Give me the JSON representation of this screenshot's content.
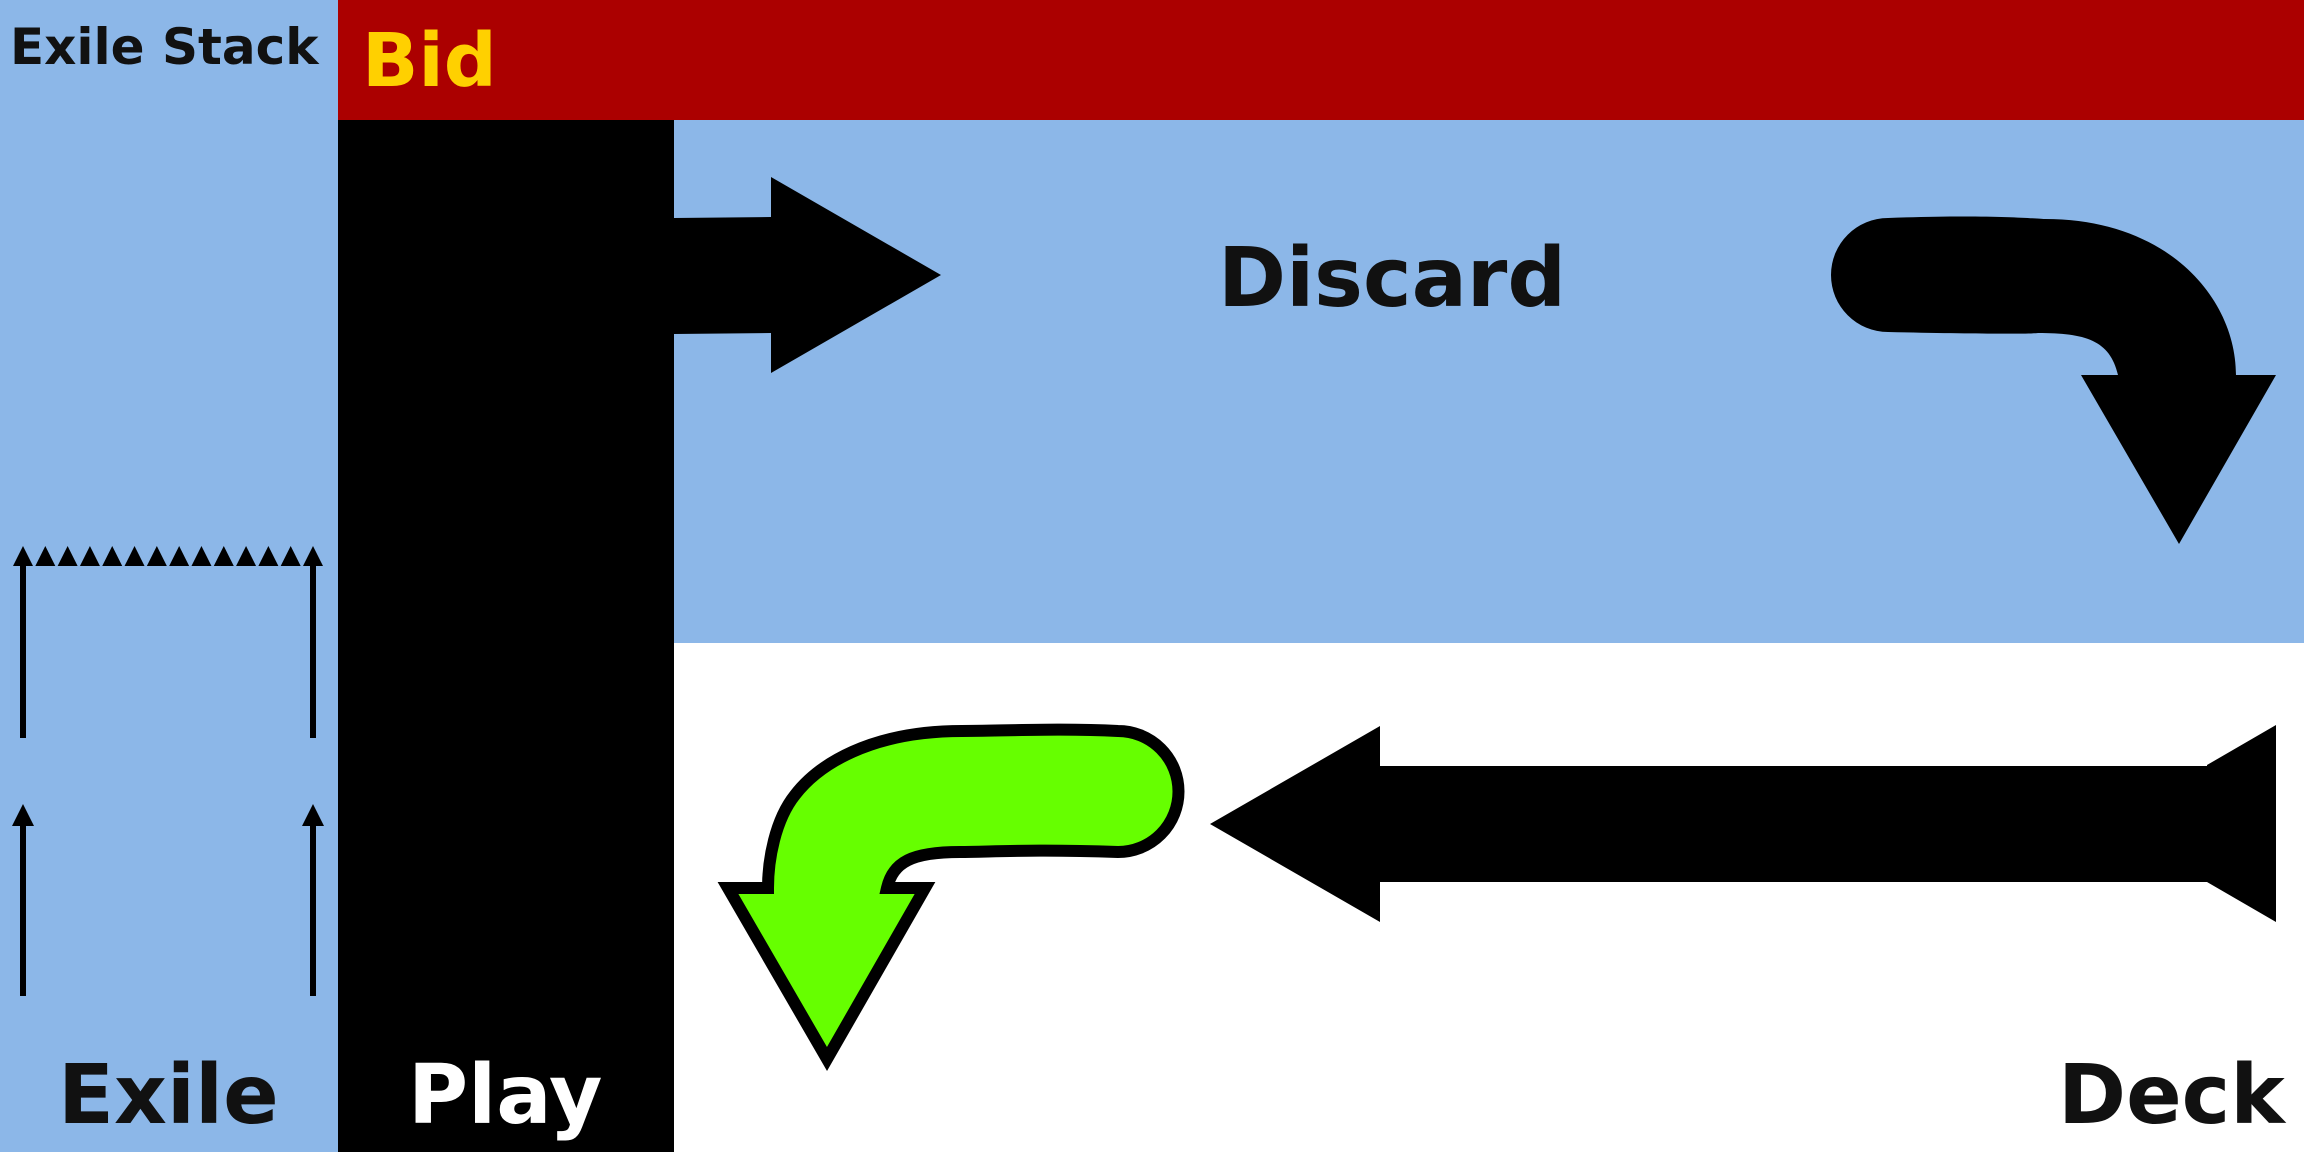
{
  "colors": {
    "exile": "#8cb7e8",
    "bid": "#ab0000",
    "bid_text": "#ffd000",
    "play": "#000000",
    "play_text": "#ffffff",
    "discard": "#8cb7e8",
    "deck": "#ffffff",
    "label_text": "#111111",
    "arrow": "#000000",
    "highlight_arrow": "#66ff00"
  },
  "zones": {
    "exile_stack_label": "Exile Stack",
    "exile_label": "Exile",
    "bid_label": "Bid",
    "play_label": "Play",
    "discard_label": "Discard",
    "deck_label": "Deck"
  },
  "arrows": {
    "play_to_discard": "arrow-right",
    "discard_to_deck": "arrow-curved-down",
    "deck_to_play": "arrow-left",
    "deck_curve_to_play": "arrow-curved-down-highlighted"
  },
  "exile_stack": {
    "marker_count": 14
  }
}
